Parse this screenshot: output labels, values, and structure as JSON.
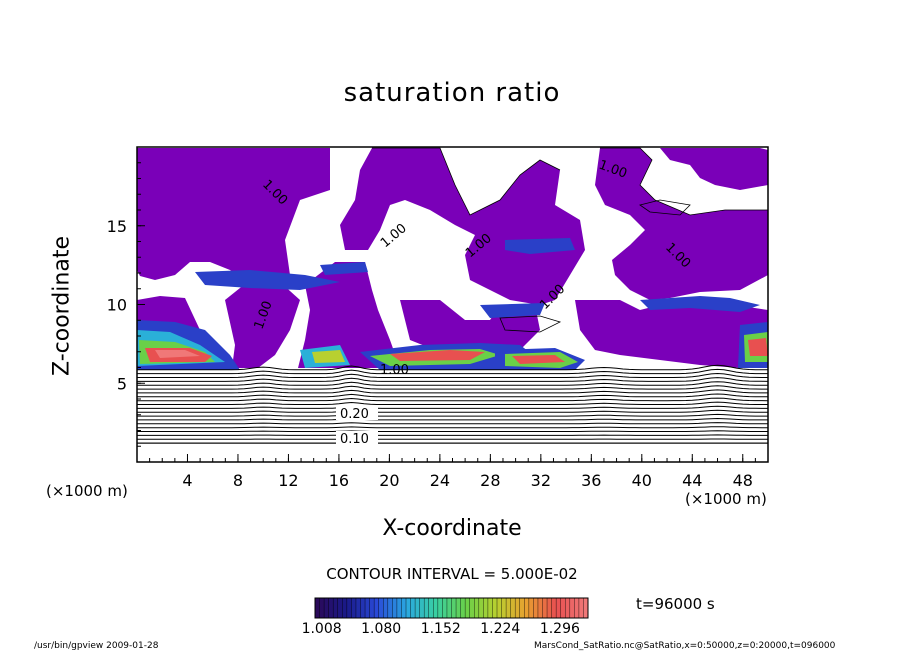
{
  "chart_data": {
    "type": "heatmap",
    "title": "saturation ratio",
    "xlabel": "X-coordinate",
    "ylabel": "Z-coordinate",
    "x_unit_label": "(×1000 m)",
    "x_unit_label_right": "(×1000 m)",
    "xlim": [
      0,
      50
    ],
    "ylim": [
      0,
      20
    ],
    "xticks": [
      "4",
      "8",
      "12",
      "16",
      "20",
      "24",
      "28",
      "32",
      "36",
      "40",
      "44",
      "48"
    ],
    "yticks": [
      "5",
      "10",
      "15"
    ],
    "colorbar": {
      "ticks": [
        "1.008",
        "1.080",
        "1.152",
        "1.224",
        "1.296"
      ],
      "range": [
        1.0,
        1.33
      ],
      "colors": [
        "#2a0a5a",
        "#1a1a8a",
        "#2a4ad8",
        "#2aa8e0",
        "#3ad0a0",
        "#6ad048",
        "#b8d030",
        "#e8a030",
        "#e85050",
        "#f07878"
      ]
    },
    "contour_interval": "CONTOUR INTERVAL = 5.000E-02",
    "contour_labels": [
      "0.10",
      "0.20",
      "1.00",
      "1.00",
      "1.00",
      "1.00",
      "1.00",
      "1.00",
      "1.00",
      "1.00"
    ],
    "time_label": "t=96000 s",
    "footer_left": "/usr/bin/gpview  2009-01-28",
    "footer_right": "MarsCond_SatRatio.nc@SatRatio,x=0:50000,z=0:20000,t=096000",
    "fill_color": "#7a00b8"
  }
}
